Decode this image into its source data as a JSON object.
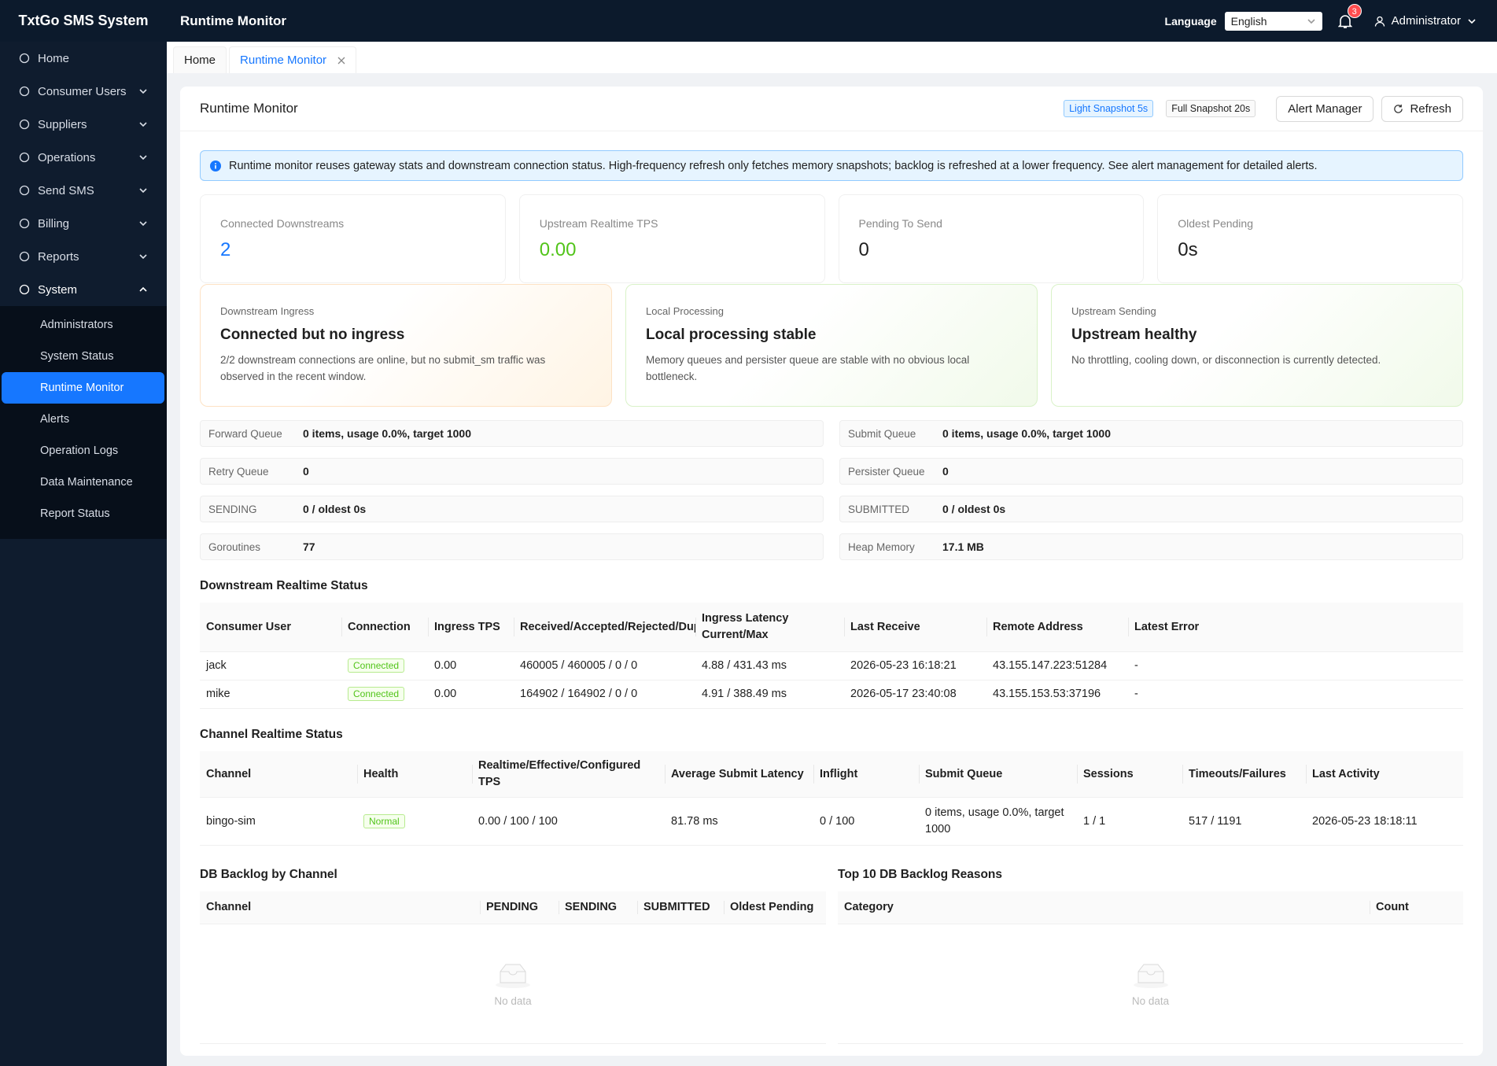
{
  "header": {
    "brand": "TxtGo SMS System",
    "page": "Runtime Monitor",
    "language_label": "Language",
    "language": "English",
    "notifications": "3",
    "user": "Administrator"
  },
  "sidebar": {
    "items": [
      "Home",
      "Consumer Users",
      "Suppliers",
      "Operations",
      "Send SMS",
      "Billing",
      "Reports",
      "System"
    ],
    "system_children": [
      "Administrators",
      "System Status",
      "Runtime Monitor",
      "Alerts",
      "Operation Logs",
      "Data Maintenance",
      "Report Status"
    ]
  },
  "tabs": [
    "Home",
    "Runtime Monitor"
  ],
  "card": {
    "title": "Runtime Monitor",
    "badges": [
      "Light Snapshot 5s",
      "Full Snapshot 20s"
    ],
    "buttons": [
      "Alert Manager",
      "Refresh"
    ]
  },
  "notice": "Runtime monitor reuses gateway stats and downstream connection status. High-frequency refresh only fetches memory snapshots; backlog is refreshed at a lower frequency. See alert management for detailed alerts.",
  "stats": [
    {
      "label": "Connected Downstreams",
      "value": "2"
    },
    {
      "label": "Upstream Realtime TPS",
      "value": "0.00"
    },
    {
      "label": "Pending To Send",
      "value": "0"
    },
    {
      "label": "Oldest Pending",
      "value": "0s"
    }
  ],
  "health": [
    {
      "label": "Downstream Ingress",
      "title": "Connected but no ingress",
      "text": "2/2 downstream connections are online, but no submit_sm traffic was observed in the recent window."
    },
    {
      "label": "Local Processing",
      "title": "Local processing stable",
      "text": "Memory queues and persister queue are stable with no obvious local bottleneck."
    },
    {
      "label": "Upstream Sending",
      "title": "Upstream healthy",
      "text": "No throttling, cooling down, or disconnection is currently detected."
    }
  ],
  "metrics": [
    {
      "label": "Forward Queue",
      "value": "0 items, usage 0.0%, target 1000"
    },
    {
      "label": "Submit Queue",
      "value": "0 items, usage 0.0%, target 1000"
    },
    {
      "label": "Retry Queue",
      "value": "0"
    },
    {
      "label": "Persister Queue",
      "value": "0"
    },
    {
      "label": "SENDING",
      "value": "0 / oldest 0s"
    },
    {
      "label": "SUBMITTED",
      "value": "0 / oldest 0s"
    },
    {
      "label": "Goroutines",
      "value": "77"
    },
    {
      "label": "Heap Memory",
      "value": "17.1 MB"
    }
  ],
  "downstream": {
    "title": "Downstream Realtime Status",
    "columns": [
      "Consumer User",
      "Connection",
      "Ingress TPS",
      "Received/Accepted/Rejected/Duplicates",
      "Ingress Latency Current/Max",
      "Last Receive",
      "Remote Address",
      "Latest Error"
    ],
    "rows": [
      [
        "jack",
        "Connected",
        "0.00",
        "460005 / 460005 / 0 / 0",
        "4.88 / 431.43 ms",
        "2026-05-23 16:18:21",
        "43.155.147.223:51284",
        "-"
      ],
      [
        "mike",
        "Connected",
        "0.00",
        "164902 / 164902 / 0 / 0",
        "4.91 / 388.49 ms",
        "2026-05-17 23:40:08",
        "43.155.153.53:37196",
        "-"
      ]
    ]
  },
  "channels": {
    "title": "Channel Realtime Status",
    "columns": [
      "Channel",
      "Health",
      "Realtime/Effective/Configured TPS",
      "Average Submit Latency",
      "Inflight",
      "Submit Queue",
      "Sessions",
      "Timeouts/Failures",
      "Last Activity"
    ],
    "rows": [
      [
        "bingo-sim",
        "Normal",
        "0.00 / 100 / 100",
        "81.78 ms",
        "0 / 100",
        "0 items, usage 0.0%, target 1000",
        "1 / 1",
        "517 / 1191",
        "2026-05-23 18:18:11"
      ]
    ]
  },
  "backlog": {
    "title": "DB Backlog by Channel",
    "columns": [
      "Channel",
      "PENDING",
      "SENDING",
      "SUBMITTED",
      "Oldest Pending"
    ],
    "empty": "No data"
  },
  "reasons": {
    "title": "Top 10 DB Backlog Reasons",
    "columns": [
      "Category",
      "Count"
    ],
    "empty": "No data"
  }
}
